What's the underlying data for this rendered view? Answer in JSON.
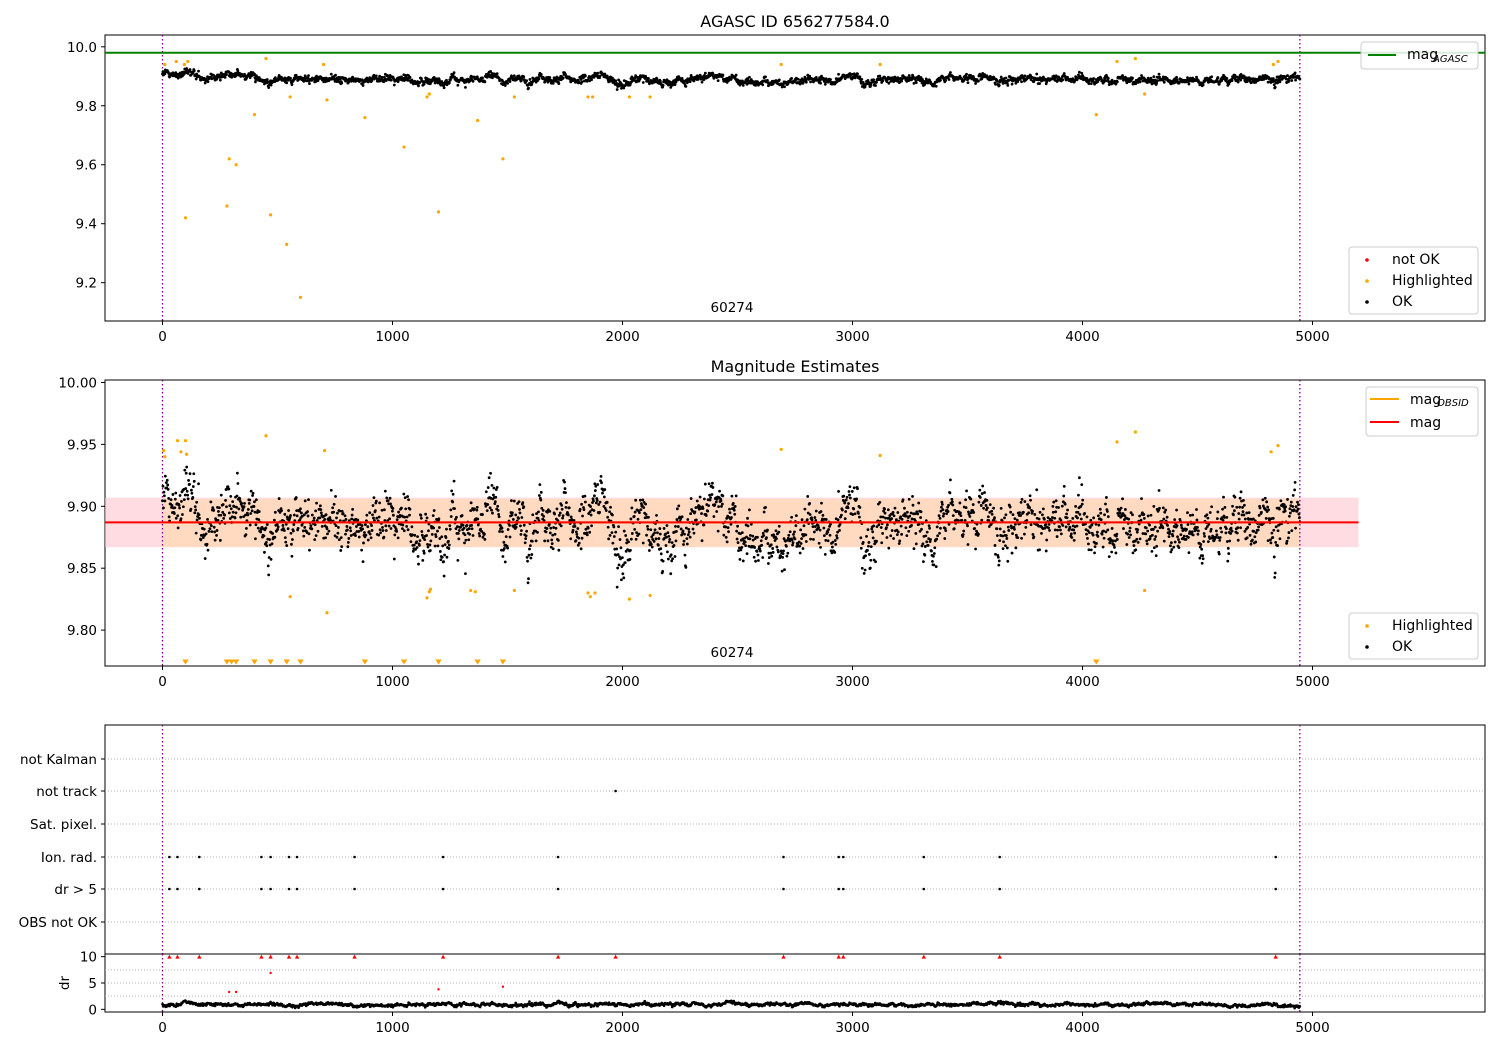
{
  "figure": {
    "title1": "AGASC ID 656277584.0",
    "title2": "Magnitude Estimates",
    "obsid_label": "60274"
  },
  "colors": {
    "ok": "#000000",
    "highlighted": "#ffa500",
    "not_ok": "#ff0000",
    "mag_agasc": "#008000",
    "mag_obsid": "#ffa500",
    "mag": "#ff0000",
    "band_outer": "#ffc0cb",
    "band_inner": "#ffdab9",
    "vline": "#800080",
    "grid": "#b0b0b0",
    "dr_over": "#ff0000"
  },
  "legends": {
    "p1_top": [
      {
        "label": "mag",
        "sub": "AGASC"
      }
    ],
    "p1_bottom": [
      {
        "label": "not OK"
      },
      {
        "label": "Highlighted"
      },
      {
        "label": "OK"
      }
    ],
    "p2_top": [
      {
        "label": "mag",
        "sub": "OBSID"
      },
      {
        "label": "mag"
      }
    ],
    "p2_bottom": [
      {
        "label": "Highlighted"
      },
      {
        "label": "OK"
      }
    ]
  },
  "chart_data": [
    {
      "type": "scatter",
      "title": "AGASC ID 656277584.0",
      "xlim": [
        -250,
        5750
      ],
      "ylim": [
        9.07,
        10.04
      ],
      "xticks": [
        0,
        1000,
        2000,
        3000,
        4000,
        5000
      ],
      "yticks": [
        9.2,
        9.4,
        9.6,
        9.8,
        10.0
      ],
      "ytick_labels": [
        "9.2",
        "9.4",
        "9.6",
        "9.8",
        "10.0"
      ],
      "vlines": [
        0,
        4945
      ],
      "hline_mag_agasc": 9.98,
      "annotation": {
        "text": "60274",
        "x": 2470
      },
      "ok_series": {
        "x_range": [
          0,
          4945
        ],
        "baseline_mean": 9.89,
        "spread": 0.02
      },
      "highlighted_points": [
        [
          10,
          9.94
        ],
        [
          60,
          9.95
        ],
        [
          95,
          9.94
        ],
        [
          100,
          9.42
        ],
        [
          110,
          9.95
        ],
        [
          280,
          9.46
        ],
        [
          290,
          9.62
        ],
        [
          320,
          9.6
        ],
        [
          400,
          9.77
        ],
        [
          450,
          9.96
        ],
        [
          470,
          9.43
        ],
        [
          540,
          9.33
        ],
        [
          555,
          9.83
        ],
        [
          600,
          9.15
        ],
        [
          700,
          9.94
        ],
        [
          715,
          9.82
        ],
        [
          880,
          9.76
        ],
        [
          1050,
          9.66
        ],
        [
          1150,
          9.83
        ],
        [
          1160,
          9.84
        ],
        [
          1200,
          9.44
        ],
        [
          1370,
          9.75
        ],
        [
          1480,
          9.62
        ],
        [
          1530,
          9.83
        ],
        [
          1850,
          9.83
        ],
        [
          1870,
          9.83
        ],
        [
          2030,
          9.83
        ],
        [
          2120,
          9.83
        ],
        [
          2690,
          9.94
        ],
        [
          3120,
          9.94
        ],
        [
          4060,
          9.77
        ],
        [
          4150,
          9.95
        ],
        [
          4230,
          9.96
        ],
        [
          4270,
          9.84
        ],
        [
          4830,
          9.94
        ],
        [
          4850,
          9.95
        ]
      ]
    },
    {
      "type": "scatter",
      "title": "Magnitude Estimates",
      "xlim": [
        -250,
        5750
      ],
      "ylim": [
        9.771,
        10.002
      ],
      "xticks": [
        0,
        1000,
        2000,
        3000,
        4000,
        5000
      ],
      "yticks": [
        9.8,
        9.85,
        9.9,
        9.95,
        10.0
      ],
      "ytick_labels": [
        "9.80",
        "9.85",
        "9.90",
        "9.95",
        "10.00"
      ],
      "vlines": [
        0,
        4945
      ],
      "mag": 9.887,
      "mag_band_outer": [
        9.867,
        9.907
      ],
      "mag_band_inner": [
        9.867,
        9.906
      ],
      "mag_line_x": [
        -250,
        5200
      ],
      "mag_obsid_x": [
        0,
        4945
      ],
      "annotation": {
        "text": "60274",
        "x": 2470
      },
      "ok_series": {
        "x_range": [
          0,
          4945
        ],
        "baseline_mean": 9.887,
        "spread": 0.018
      },
      "highlighted_points": [
        [
          5,
          9.945
        ],
        [
          10,
          9.94
        ],
        [
          65,
          9.953
        ],
        [
          80,
          9.944
        ],
        [
          100,
          9.953
        ],
        [
          105,
          9.942
        ],
        [
          450,
          9.957
        ],
        [
          555,
          9.827
        ],
        [
          705,
          9.945
        ],
        [
          715,
          9.814
        ],
        [
          1150,
          9.826
        ],
        [
          1160,
          9.831
        ],
        [
          1165,
          9.833
        ],
        [
          1340,
          9.832
        ],
        [
          1360,
          9.831
        ],
        [
          1530,
          9.832
        ],
        [
          1850,
          9.83
        ],
        [
          1860,
          9.827
        ],
        [
          1880,
          9.83
        ],
        [
          2030,
          9.825
        ],
        [
          2120,
          9.828
        ],
        [
          2690,
          9.946
        ],
        [
          3120,
          9.941
        ],
        [
          4150,
          9.952
        ],
        [
          4230,
          9.96
        ],
        [
          4270,
          9.832
        ],
        [
          4820,
          9.944
        ],
        [
          4850,
          9.949
        ]
      ],
      "offscale_markers_x": [
        100,
        280,
        300,
        320,
        400,
        470,
        540,
        600,
        880,
        1050,
        1200,
        1370,
        1480,
        4060
      ]
    },
    {
      "type": "scatter",
      "title": "",
      "xlim": [
        -250,
        5750
      ],
      "xticks": [
        0,
        1000,
        2000,
        3000,
        4000,
        5000
      ],
      "vlines": [
        0,
        4945
      ],
      "flag_rows": [
        "not Kalman",
        "not track",
        "Sat. pixel.",
        "Ion. rad.",
        "dr > 5",
        "OBS not OK"
      ],
      "flag_points": {
        "not Kalman": [],
        "not track": [
          1970
        ],
        "Sat. pixel.": [],
        "Ion. rad.": [
          30,
          65,
          160,
          430,
          470,
          550,
          585,
          835,
          1220,
          1720,
          2700,
          2940,
          2960,
          3310,
          3640,
          4840
        ],
        "dr > 5": [
          30,
          65,
          160,
          430,
          470,
          550,
          585,
          835,
          1220,
          1720,
          2700,
          2940,
          2960,
          3310,
          3640,
          4840
        ],
        "OBS not OK": []
      }
    },
    {
      "type": "scatter",
      "title": "",
      "ylabel": "dr",
      "xlim": [
        -250,
        5750
      ],
      "ylim": [
        -0.5,
        10.5
      ],
      "xticks": [
        0,
        1000,
        2000,
        3000,
        4000,
        5000
      ],
      "yticks": [
        0,
        5,
        10
      ],
      "vlines": [
        0,
        4945
      ],
      "dr_series": {
        "x_range": [
          0,
          4945
        ],
        "mean": 0.9,
        "spread": 0.3
      },
      "dr_clipped_x": [
        30,
        65,
        160,
        430,
        470,
        550,
        585,
        835,
        1220,
        1720,
        1970,
        2700,
        2940,
        2960,
        3310,
        3640,
        4840
      ],
      "dr_outliers": [
        [
          290,
          3.3
        ],
        [
          320,
          3.3
        ],
        [
          470,
          6.9
        ],
        [
          1200,
          3.8
        ],
        [
          1480,
          4.3
        ]
      ]
    }
  ]
}
